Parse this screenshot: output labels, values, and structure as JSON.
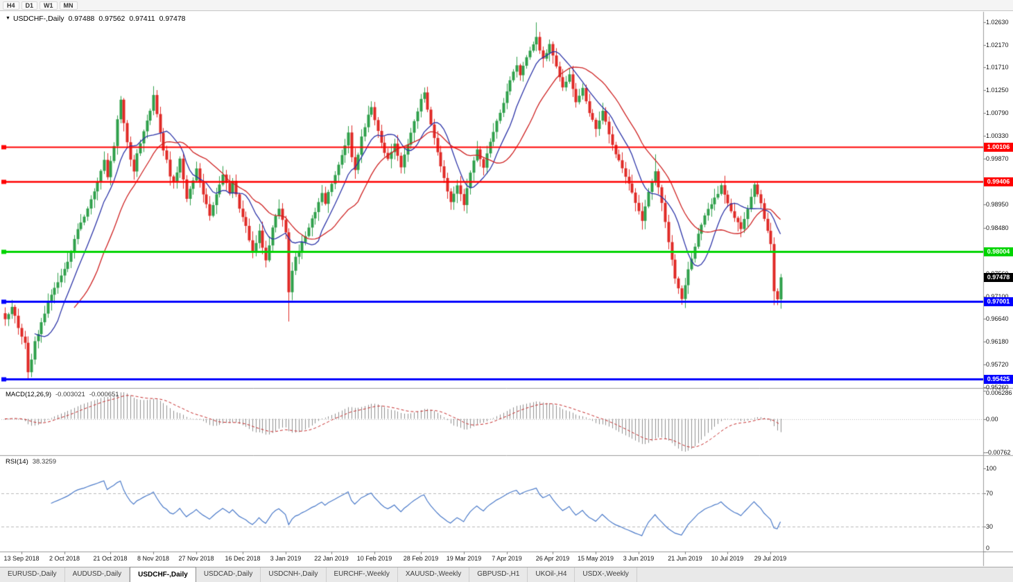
{
  "colors": {
    "up": "#2fa04b",
    "down": "#e02a26",
    "ma_fast": "#2b33a8",
    "ma_slow": "#cf2222",
    "macd_hist": "#8f8f8f",
    "macd_signal": "#c62828",
    "rsi_line": "#4979c9",
    "grid": "#b8b8b8",
    "frame": "#9a9a9a",
    "line_red": "#ff0000",
    "line_green": "#00d400",
    "line_blue": "#0000ff",
    "badge_current_bg": "#000000"
  },
  "toolbar": {
    "timeframes": [
      "H4",
      "D1",
      "W1",
      "MN"
    ]
  },
  "chart": {
    "symbol_period": "USDCHF-,Daily",
    "open": "0.97488",
    "high": "0.97562",
    "low": "0.97411",
    "close": "0.97478",
    "dropdown_icon": "▼"
  },
  "main_panel": {
    "y_ticks": [
      {
        "label": "1.02630",
        "value": 1.0263
      },
      {
        "label": "1.02170",
        "value": 1.0217
      },
      {
        "label": "1.01710",
        "value": 1.0171
      },
      {
        "label": "1.01250",
        "value": 1.0125
      },
      {
        "label": "1.00790",
        "value": 1.0079
      },
      {
        "label": "1.00330",
        "value": 1.0033
      },
      {
        "label": "0.99870",
        "value": 0.9987
      },
      {
        "label": "0.98950",
        "value": 0.9895
      },
      {
        "label": "0.98480",
        "value": 0.9848
      },
      {
        "label": "0.97560",
        "value": 0.9756
      },
      {
        "label": "0.97100",
        "value": 0.971
      },
      {
        "label": "0.96640",
        "value": 0.9664
      },
      {
        "label": "0.96180",
        "value": 0.9618
      },
      {
        "label": "0.95720",
        "value": 0.9572
      },
      {
        "label": "0.95260",
        "value": 0.9526
      }
    ],
    "price_lines": [
      {
        "label": "1.00106",
        "value": 1.00106,
        "color_key": "line_red",
        "width": 2
      },
      {
        "label": "0.99406",
        "value": 0.99406,
        "color_key": "line_red",
        "width": 2.5
      },
      {
        "label": "0.98004",
        "value": 0.98004,
        "color_key": "line_green",
        "width": 3
      },
      {
        "label": "0.97001",
        "value": 0.97001,
        "color_key": "line_blue",
        "width": 3
      },
      {
        "label": "0.95425",
        "value": 0.95425,
        "color_key": "line_blue",
        "width": 3
      }
    ],
    "current_price": {
      "label": "0.97478",
      "value": 0.97478
    }
  },
  "macd_panel": {
    "name": "MACD(12,26,9)",
    "value_main": "-0.003021",
    "value_signal": "-0.000651",
    "y_ticks": [
      {
        "label": "0.006286",
        "value": 0.006286
      },
      {
        "label": "0.00",
        "value": 0
      },
      {
        "label": "-0.00762",
        "value": -0.00762
      }
    ]
  },
  "rsi_panel": {
    "name": "RSI(14)",
    "value": "38.3259",
    "levels": [
      70,
      30
    ],
    "y_ticks": [
      {
        "label": "100",
        "value": 100
      },
      {
        "label": "70",
        "value": 70
      },
      {
        "label": "30",
        "value": 30
      },
      {
        "label": "0",
        "value": 0
      }
    ]
  },
  "x_axis": [
    {
      "label": "13 Sep 2018",
      "bar": 5
    },
    {
      "label": "2 Oct 2018",
      "bar": 18
    },
    {
      "label": "21 Oct 2018",
      "bar": 32
    },
    {
      "label": "8 Nov 2018",
      "bar": 45
    },
    {
      "label": "27 Nov 2018",
      "bar": 58
    },
    {
      "label": "16 Dec 2018",
      "bar": 72
    },
    {
      "label": "3 Jan 2019",
      "bar": 85
    },
    {
      "label": "22 Jan 2019",
      "bar": 99
    },
    {
      "label": "10 Feb 2019",
      "bar": 112
    },
    {
      "label": "28 Feb 2019",
      "bar": 126
    },
    {
      "label": "19 Mar 2019",
      "bar": 139
    },
    {
      "label": "7 Apr 2019",
      "bar": 152
    },
    {
      "label": "26 Apr 2019",
      "bar": 166
    },
    {
      "label": "15 May 2019",
      "bar": 179
    },
    {
      "label": "3 Jun 2019",
      "bar": 192
    },
    {
      "label": "21 Jun 2019",
      "bar": 206
    },
    {
      "label": "10 Jul 2019",
      "bar": 219
    },
    {
      "label": "29 Jul 2019",
      "bar": 232
    }
  ],
  "tabs": [
    {
      "label": "EURUSD-,Daily",
      "active": false
    },
    {
      "label": "AUDUSD-,Daily",
      "active": false
    },
    {
      "label": "USDCHF-,Daily",
      "active": true
    },
    {
      "label": "USDCAD-,Daily",
      "active": false
    },
    {
      "label": "USDCNH-,Daily",
      "active": false
    },
    {
      "label": "EURCHF-,Weekly",
      "active": false
    },
    {
      "label": "XAUUSD-,Weekly",
      "active": false
    },
    {
      "label": "GBPUSD-,H1",
      "active": false
    },
    {
      "label": "UKOil-,H4",
      "active": false
    },
    {
      "label": "USDX-,Weekly",
      "active": false
    }
  ],
  "chart_data": {
    "type": "candlestick",
    "num_bars": 236,
    "seed": 12,
    "price_range": [
      0.9525,
      1.0282
    ],
    "close_anchors": [
      [
        0,
        0.9665
      ],
      [
        2,
        0.9688
      ],
      [
        4,
        0.9648
      ],
      [
        6,
        0.9615
      ],
      [
        7,
        0.9556
      ],
      [
        8,
        0.9582
      ],
      [
        9,
        0.9618
      ],
      [
        11,
        0.9655
      ],
      [
        13,
        0.9697
      ],
      [
        15,
        0.9726
      ],
      [
        18,
        0.9762
      ],
      [
        20,
        0.98
      ],
      [
        22,
        0.9846
      ],
      [
        24,
        0.9872
      ],
      [
        26,
        0.9906
      ],
      [
        28,
        0.9942
      ],
      [
        30,
        0.9986
      ],
      [
        31,
        0.9952
      ],
      [
        33,
        1.0012
      ],
      [
        34,
        1.0068
      ],
      [
        35,
        1.0106
      ],
      [
        36,
        1.006
      ],
      [
        37,
        1.0022
      ],
      [
        38,
        0.9986
      ],
      [
        39,
        0.996
      ],
      [
        40,
        1.0
      ],
      [
        42,
        1.0042
      ],
      [
        44,
        1.0086
      ],
      [
        45,
        1.0118
      ],
      [
        46,
        1.0076
      ],
      [
        47,
        1.004
      ],
      [
        48,
        1.0006
      ],
      [
        49,
        0.9986
      ],
      [
        50,
        0.9952
      ],
      [
        51,
        0.9938
      ],
      [
        53,
        0.9986
      ],
      [
        54,
        0.9946
      ],
      [
        55,
        0.9908
      ],
      [
        57,
        0.9946
      ],
      [
        58,
        0.9966
      ],
      [
        60,
        0.9918
      ],
      [
        62,
        0.9872
      ],
      [
        64,
        0.9916
      ],
      [
        66,
        0.9958
      ],
      [
        68,
        0.9918
      ],
      [
        69,
        0.994
      ],
      [
        71,
        0.9888
      ],
      [
        73,
        0.985
      ],
      [
        75,
        0.9798
      ],
      [
        77,
        0.984
      ],
      [
        79,
        0.978
      ],
      [
        81,
        0.985
      ],
      [
        83,
        0.9888
      ],
      [
        85,
        0.984
      ],
      [
        86,
        0.9718
      ],
      [
        87,
        0.9762
      ],
      [
        88,
        0.9788
      ],
      [
        90,
        0.9816
      ],
      [
        92,
        0.9846
      ],
      [
        94,
        0.9882
      ],
      [
        96,
        0.9918
      ],
      [
        97,
        0.9898
      ],
      [
        99,
        0.9938
      ],
      [
        101,
        0.9976
      ],
      [
        103,
        1.0012
      ],
      [
        104,
        1.004
      ],
      [
        105,
        0.9992
      ],
      [
        106,
        0.9966
      ],
      [
        108,
        1.003
      ],
      [
        110,
        1.0076
      ],
      [
        111,
        1.0092
      ],
      [
        113,
        1.0042
      ],
      [
        115,
        1.0
      ],
      [
        116,
        0.9986
      ],
      [
        118,
        1.0016
      ],
      [
        120,
        0.9972
      ],
      [
        122,
        1.0018
      ],
      [
        124,
        1.0062
      ],
      [
        126,
        1.0108
      ],
      [
        127,
        1.0118
      ],
      [
        129,
        1.0058
      ],
      [
        131,
        0.9998
      ],
      [
        133,
        0.9946
      ],
      [
        135,
        0.9902
      ],
      [
        137,
        0.9936
      ],
      [
        139,
        0.9896
      ],
      [
        141,
        0.9958
      ],
      [
        143,
        1.0006
      ],
      [
        145,
        0.9972
      ],
      [
        147,
        1.0022
      ],
      [
        149,
        1.0062
      ],
      [
        151,
        1.0102
      ],
      [
        153,
        1.0146
      ],
      [
        155,
        1.0178
      ],
      [
        156,
        1.0158
      ],
      [
        158,
        1.0192
      ],
      [
        160,
        1.0216
      ],
      [
        161,
        1.0232
      ],
      [
        162,
        1.0205
      ],
      [
        163,
        1.0188
      ],
      [
        165,
        1.0216
      ],
      [
        167,
        1.0172
      ],
      [
        169,
        1.0132
      ],
      [
        171,
        1.0158
      ],
      [
        173,
        1.0102
      ],
      [
        175,
        1.0128
      ],
      [
        177,
        1.0078
      ],
      [
        179,
        1.0048
      ],
      [
        181,
        1.0082
      ],
      [
        183,
        1.0038
      ],
      [
        185,
        0.9998
      ],
      [
        187,
        0.9968
      ],
      [
        189,
        0.9938
      ],
      [
        191,
        0.9898
      ],
      [
        193,
        0.9862
      ],
      [
        195,
        0.9918
      ],
      [
        197,
        0.9962
      ],
      [
        199,
        0.9898
      ],
      [
        201,
        0.9818
      ],
      [
        203,
        0.9748
      ],
      [
        205,
        0.9706
      ],
      [
        207,
        0.9762
      ],
      [
        209,
        0.9812
      ],
      [
        211,
        0.9855
      ],
      [
        213,
        0.9885
      ],
      [
        215,
        0.9906
      ],
      [
        217,
        0.9932
      ],
      [
        219,
        0.9898
      ],
      [
        221,
        0.9868
      ],
      [
        223,
        0.9845
      ],
      [
        225,
        0.9888
      ],
      [
        227,
        0.9938
      ],
      [
        229,
        0.9898
      ],
      [
        231,
        0.984
      ],
      [
        232,
        0.9815
      ],
      [
        233,
        0.9718
      ],
      [
        234,
        0.9705
      ],
      [
        235,
        0.9748
      ]
    ],
    "spikes": [
      {
        "bar": 7,
        "low": 0.9543
      },
      {
        "bar": 86,
        "low": 0.9659
      },
      {
        "bar": 161,
        "high": 1.0262
      },
      {
        "bar": 197,
        "high": 0.9996
      },
      {
        "bar": 205,
        "low": 0.9694
      },
      {
        "bar": 233,
        "low": 0.9692
      }
    ],
    "ma_fast_period": 10,
    "ma_slow_period": 22,
    "macd": {
      "fast": 12,
      "slow": 26,
      "signal": 9
    },
    "rsi_period": 14
  }
}
